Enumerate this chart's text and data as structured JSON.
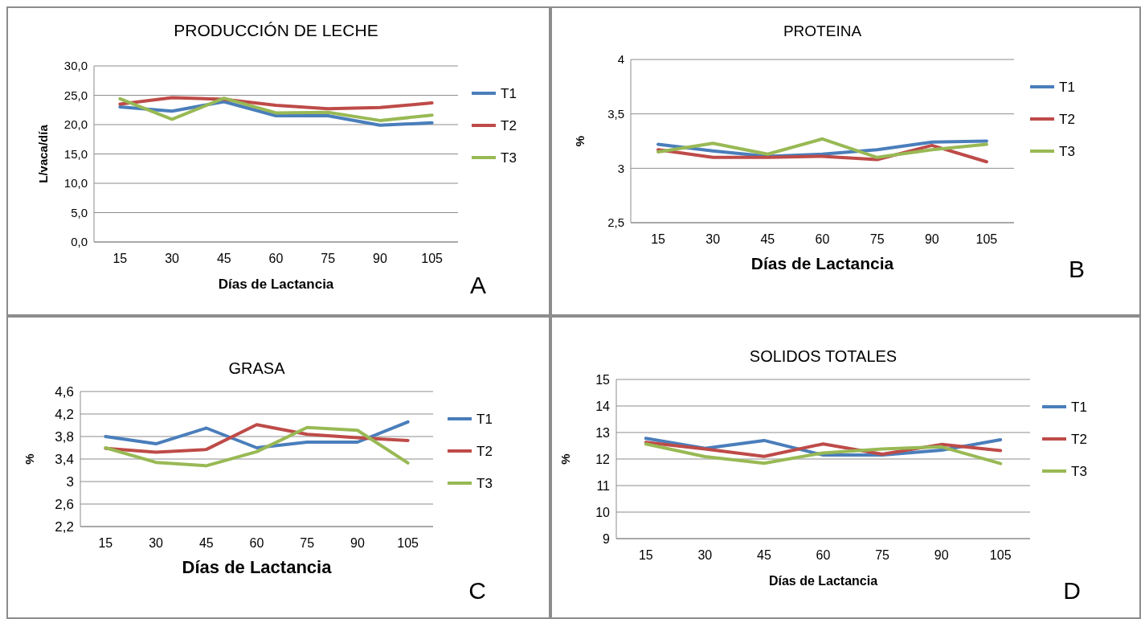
{
  "chart_data": [
    {
      "type": "line",
      "title": "PRODUCCIÓN DE LECHE",
      "xlabel": "Días de Lactancia",
      "ylabel": "L/vaca/día",
      "categories": [
        "15",
        "30",
        "45",
        "60",
        "75",
        "90",
        "105"
      ],
      "ylim": [
        0,
        30
      ],
      "yticks": [
        {
          "value": 0,
          "label": "0,0"
        },
        {
          "value": 5,
          "label": "5,0"
        },
        {
          "value": 10,
          "label": "10,0"
        },
        {
          "value": 15,
          "label": "15,0"
        },
        {
          "value": 20,
          "label": "20,0"
        },
        {
          "value": 25,
          "label": "25,0"
        },
        {
          "value": 30,
          "label": "30,0"
        }
      ],
      "grid": "y",
      "legend": "right",
      "marker": "none",
      "annotations": [
        "A"
      ],
      "series": [
        {
          "name": "T1",
          "color": "#4a7ebb",
          "values": [
            23.0,
            22.3,
            23.9,
            21.5,
            21.5,
            19.9,
            20.3
          ]
        },
        {
          "name": "T2",
          "color": "#be4b48",
          "values": [
            23.5,
            24.6,
            24.3,
            23.3,
            22.7,
            22.9,
            23.7
          ]
        },
        {
          "name": "T3",
          "color": "#98b954",
          "values": [
            24.4,
            20.9,
            24.5,
            22.0,
            22.1,
            20.7,
            21.6
          ]
        }
      ]
    },
    {
      "type": "line",
      "title": "PROTEINA",
      "xlabel": "Días de Lactancia",
      "ylabel": "%",
      "categories": [
        "15",
        "30",
        "45",
        "60",
        "75",
        "90",
        "105"
      ],
      "ylim": [
        2.5,
        4
      ],
      "yticks": [
        {
          "value": 2.5,
          "label": "2,5"
        },
        3,
        {
          "value": 3.5,
          "label": "3,5"
        },
        4
      ],
      "grid": "y",
      "legend": "right",
      "marker": "none",
      "annotations": [
        "B"
      ],
      "series": [
        {
          "name": "T1",
          "color": "#4a7ebb",
          "values": [
            3.22,
            3.16,
            3.11,
            3.13,
            3.17,
            3.24,
            3.25
          ]
        },
        {
          "name": "T2",
          "color": "#be4b48",
          "values": [
            3.17,
            3.1,
            3.1,
            3.11,
            3.08,
            3.21,
            3.06
          ]
        },
        {
          "name": "T3",
          "color": "#98b954",
          "values": [
            3.15,
            3.23,
            3.13,
            3.27,
            3.1,
            3.17,
            3.22
          ]
        }
      ]
    },
    {
      "type": "line",
      "title": "GRASA",
      "xlabel": "Días de Lactancia",
      "ylabel": "%",
      "categories": [
        "15",
        "30",
        "45",
        "60",
        "75",
        "90",
        "105"
      ],
      "ylim": [
        2.2,
        4.6
      ],
      "yticks": [
        {
          "value": 2.2,
          "label": "2,2"
        },
        {
          "value": 2.6,
          "label": "2,6"
        },
        3,
        {
          "value": 3.4,
          "label": "3,4"
        },
        {
          "value": 3.8,
          "label": "3,8"
        },
        {
          "value": 4.2,
          "label": "4,2"
        },
        {
          "value": 4.6,
          "label": "4,6"
        }
      ],
      "grid": "y",
      "legend": "right",
      "marker": "none",
      "annotations": [
        "C"
      ],
      "series": [
        {
          "name": "T1",
          "color": "#4a7ebb",
          "values": [
            3.8,
            3.67,
            3.95,
            3.6,
            3.7,
            3.7,
            4.06
          ]
        },
        {
          "name": "T2",
          "color": "#be4b48",
          "values": [
            3.59,
            3.52,
            3.57,
            4.01,
            3.84,
            3.78,
            3.73
          ]
        },
        {
          "name": "T3",
          "color": "#98b954",
          "values": [
            3.6,
            3.34,
            3.28,
            3.53,
            3.96,
            3.91,
            3.33
          ]
        }
      ]
    },
    {
      "type": "line",
      "title": "SOLIDOS TOTALES",
      "xlabel": "Días de Lactancia",
      "ylabel": "%",
      "categories": [
        "15",
        "30",
        "45",
        "60",
        "75",
        "90",
        "105"
      ],
      "ylim": [
        9,
        15
      ],
      "yticks": [
        9,
        10,
        11,
        12,
        13,
        14,
        15
      ],
      "grid": "y",
      "legend": "right",
      "marker": "none",
      "annotations": [
        "D"
      ],
      "series": [
        {
          "name": "T1",
          "color": "#4a7ebb",
          "values": [
            12.78,
            12.4,
            12.7,
            12.15,
            12.15,
            12.33,
            12.73
          ]
        },
        {
          "name": "T2",
          "color": "#be4b48",
          "values": [
            12.63,
            12.38,
            12.1,
            12.57,
            12.18,
            12.55,
            12.32
          ]
        },
        {
          "name": "T3",
          "color": "#98b954",
          "values": [
            12.57,
            12.09,
            11.84,
            12.23,
            12.38,
            12.46,
            11.83
          ]
        }
      ]
    }
  ]
}
